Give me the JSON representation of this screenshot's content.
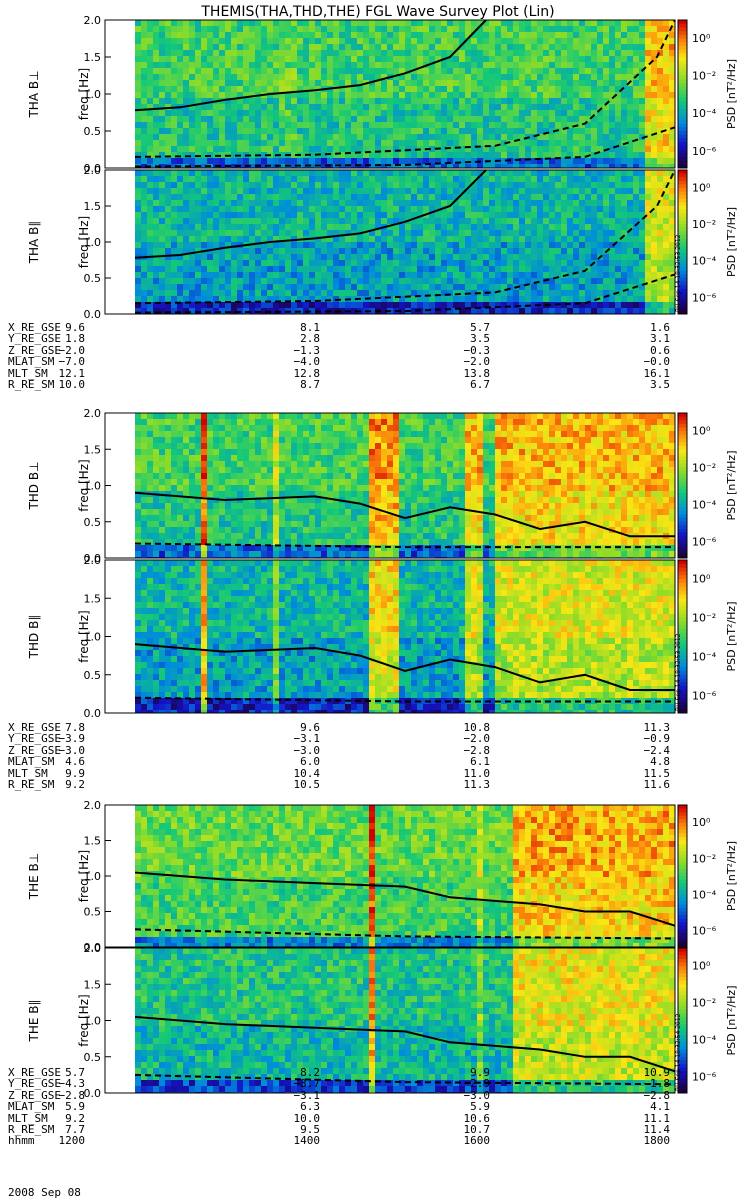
{
  "title": "THEMIS(THA,THD,THE) FGL Wave Survey Plot (Lin)",
  "ylabel": "freq [Hz]",
  "colorbar_label": "PSD [nT²/Hz]",
  "colorbar_ticks": [
    "10⁰",
    "10⁻²",
    "10⁻⁴",
    "10⁻⁶"
  ],
  "y_ticks": [
    "0.0",
    "0.5",
    "1.0",
    "1.5",
    "2.0"
  ],
  "stamps": [
    "RH Sep 14 18:32:53 2012",
    "RH Sep 14 18:32:53 2012",
    "RH Sep 14 18:32:54 2012"
  ],
  "chart_data": [
    {
      "type": "heatmap",
      "probe": "THA",
      "component": "THA B⊥",
      "ylim": [
        0,
        2.0
      ],
      "xlim": [
        "1200",
        "1800"
      ],
      "gyro_line": [
        [
          1200,
          0.78
        ],
        [
          1250,
          0.82
        ],
        [
          1300,
          0.92
        ],
        [
          1350,
          1.0
        ],
        [
          1400,
          1.05
        ],
        [
          1450,
          1.12
        ],
        [
          1500,
          1.28
        ],
        [
          1550,
          1.5
        ],
        [
          1590,
          2.0
        ]
      ],
      "dashed_upper": [
        [
          1200,
          0.15
        ],
        [
          1400,
          0.18
        ],
        [
          1600,
          0.3
        ],
        [
          1700,
          0.6
        ],
        [
          1780,
          1.5
        ],
        [
          1800,
          2.0
        ]
      ],
      "dashed_lower": [
        [
          1200,
          0.02
        ],
        [
          1500,
          0.04
        ],
        [
          1700,
          0.15
        ],
        [
          1800,
          0.55
        ]
      ]
    },
    {
      "type": "heatmap",
      "probe": "THA",
      "component": "THA B∥",
      "ylim": [
        0,
        2.0
      ],
      "xlim": [
        "1200",
        "1800"
      ],
      "gyro_line": [
        [
          1200,
          0.78
        ],
        [
          1250,
          0.82
        ],
        [
          1300,
          0.92
        ],
        [
          1350,
          1.0
        ],
        [
          1400,
          1.05
        ],
        [
          1450,
          1.12
        ],
        [
          1500,
          1.28
        ],
        [
          1550,
          1.5
        ],
        [
          1590,
          2.0
        ]
      ],
      "dashed_upper": [
        [
          1200,
          0.15
        ],
        [
          1400,
          0.18
        ],
        [
          1600,
          0.3
        ],
        [
          1700,
          0.6
        ],
        [
          1780,
          1.5
        ],
        [
          1800,
          2.0
        ]
      ],
      "dashed_lower": [
        [
          1200,
          0.02
        ],
        [
          1500,
          0.04
        ],
        [
          1700,
          0.15
        ],
        [
          1800,
          0.55
        ]
      ]
    },
    {
      "type": "heatmap",
      "probe": "THD",
      "component": "THD B⊥",
      "ylim": [
        0,
        2.0
      ],
      "xlim": [
        "1200",
        "1800"
      ],
      "gyro_line": [
        [
          1200,
          0.9
        ],
        [
          1300,
          0.8
        ],
        [
          1400,
          0.85
        ],
        [
          1450,
          0.75
        ],
        [
          1500,
          0.55
        ],
        [
          1550,
          0.7
        ],
        [
          1600,
          0.6
        ],
        [
          1650,
          0.4
        ],
        [
          1700,
          0.5
        ],
        [
          1750,
          0.3
        ],
        [
          1800,
          0.3
        ]
      ],
      "dashed_upper": [
        [
          1200,
          0.2
        ],
        [
          1500,
          0.15
        ],
        [
          1800,
          0.15
        ]
      ]
    },
    {
      "type": "heatmap",
      "probe": "THD",
      "component": "THD B∥",
      "ylim": [
        0,
        2.0
      ],
      "xlim": [
        "1200",
        "1800"
      ],
      "gyro_line": [
        [
          1200,
          0.9
        ],
        [
          1300,
          0.8
        ],
        [
          1400,
          0.85
        ],
        [
          1450,
          0.75
        ],
        [
          1500,
          0.55
        ],
        [
          1550,
          0.7
        ],
        [
          1600,
          0.6
        ],
        [
          1650,
          0.4
        ],
        [
          1700,
          0.5
        ],
        [
          1750,
          0.3
        ],
        [
          1800,
          0.3
        ]
      ],
      "dashed_upper": [
        [
          1200,
          0.2
        ],
        [
          1500,
          0.15
        ],
        [
          1800,
          0.15
        ]
      ]
    },
    {
      "type": "heatmap",
      "probe": "THE",
      "component": "THE B⊥",
      "ylim": [
        0,
        2.0
      ],
      "xlim": [
        "1200",
        "1800"
      ],
      "gyro_line": [
        [
          1200,
          1.05
        ],
        [
          1300,
          0.95
        ],
        [
          1400,
          0.9
        ],
        [
          1500,
          0.85
        ],
        [
          1550,
          0.7
        ],
        [
          1600,
          0.65
        ],
        [
          1650,
          0.6
        ],
        [
          1700,
          0.5
        ],
        [
          1750,
          0.5
        ],
        [
          1800,
          0.3
        ]
      ],
      "dashed_upper": [
        [
          1200,
          0.25
        ],
        [
          1500,
          0.15
        ],
        [
          1800,
          0.12
        ]
      ]
    },
    {
      "type": "heatmap",
      "probe": "THE",
      "component": "THE B∥",
      "ylim": [
        0,
        2.0
      ],
      "xlim": [
        "1200",
        "1800"
      ],
      "gyro_line": [
        [
          1200,
          1.05
        ],
        [
          1300,
          0.95
        ],
        [
          1400,
          0.9
        ],
        [
          1500,
          0.85
        ],
        [
          1550,
          0.7
        ],
        [
          1600,
          0.65
        ],
        [
          1650,
          0.6
        ],
        [
          1700,
          0.5
        ],
        [
          1750,
          0.5
        ],
        [
          1800,
          0.3
        ]
      ],
      "dashed_upper": [
        [
          1200,
          0.25
        ],
        [
          1500,
          0.15
        ],
        [
          1800,
          0.12
        ]
      ]
    }
  ],
  "orbit_tables": [
    {
      "rows": [
        {
          "label": "X_RE_GSE",
          "values": [
            "9.6",
            "8.1",
            "5.7",
            "1.6"
          ]
        },
        {
          "label": "Y_RE_GSE",
          "values": [
            "1.8",
            "2.8",
            "3.5",
            "3.1"
          ]
        },
        {
          "label": "Z_RE_GSE",
          "values": [
            "−2.0",
            "−1.3",
            "−0.3",
            "0.6"
          ]
        },
        {
          "label": "MLAT_SM",
          "values": [
            "−7.0",
            "−4.0",
            "−2.0",
            "−0.0"
          ]
        },
        {
          "label": "MLT_SM",
          "values": [
            "12.1",
            "12.8",
            "13.8",
            "16.1"
          ]
        },
        {
          "label": "R_RE_SM",
          "values": [
            "10.0",
            "8.7",
            "6.7",
            "3.5"
          ]
        }
      ]
    },
    {
      "rows": [
        {
          "label": "X_RE_GSE",
          "values": [
            "7.8",
            "9.6",
            "10.8",
            "11.3"
          ]
        },
        {
          "label": "Y_RE_GSE",
          "values": [
            "−3.9",
            "−3.1",
            "−2.0",
            "−0.9"
          ]
        },
        {
          "label": "Z_RE_GSE",
          "values": [
            "−3.0",
            "−3.0",
            "−2.8",
            "−2.4"
          ]
        },
        {
          "label": "MLAT_SM",
          "values": [
            "4.6",
            "6.0",
            "6.1",
            "4.8"
          ]
        },
        {
          "label": "MLT_SM",
          "values": [
            "9.9",
            "10.4",
            "11.0",
            "11.5"
          ]
        },
        {
          "label": "R_RE_SM",
          "values": [
            "9.2",
            "10.5",
            "11.3",
            "11.6"
          ]
        }
      ]
    },
    {
      "rows": [
        {
          "label": "X_RE_GSE",
          "values": [
            "5.7",
            "8.2",
            "9.9",
            "10.9"
          ]
        },
        {
          "label": "Y_RE_GSE",
          "values": [
            "−4.3",
            "−3.7",
            "−2.9",
            "−1.8"
          ]
        },
        {
          "label": "Z_RE_GSE",
          "values": [
            "−2.8",
            "−3.1",
            "−3.0",
            "−2.8"
          ]
        },
        {
          "label": "MLAT_SM",
          "values": [
            "5.9",
            "6.3",
            "5.9",
            "4.1"
          ]
        },
        {
          "label": "MLT_SM",
          "values": [
            "9.2",
            "10.0",
            "10.6",
            "11.1"
          ]
        },
        {
          "label": "R_RE_SM",
          "values": [
            "7.7",
            "9.5",
            "10.7",
            "11.4"
          ]
        },
        {
          "label": "hhmm",
          "values": [
            "1200",
            "1400",
            "1600",
            "1800"
          ]
        }
      ]
    }
  ],
  "date_label": "2008 Sep 08"
}
